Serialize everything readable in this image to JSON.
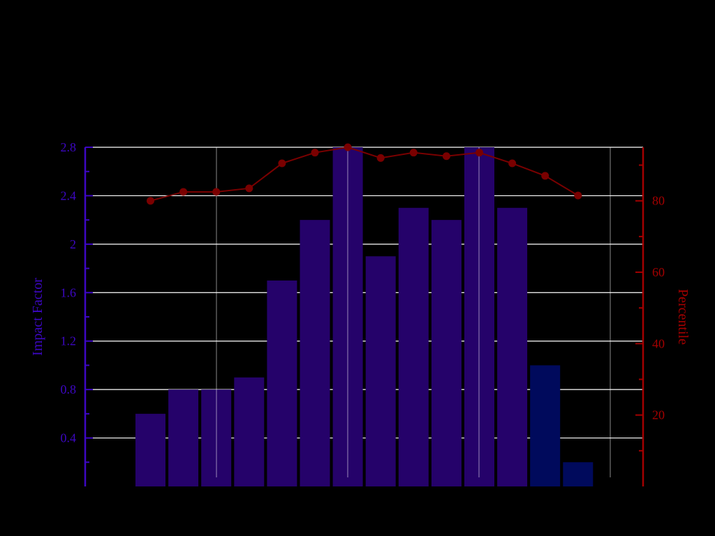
{
  "chart_data": {
    "type": "bar",
    "title": "",
    "xlabel": "",
    "ylabel": "Impact Factor",
    "y2label": "Percentile",
    "ylim": [
      0,
      2.8
    ],
    "y2lim": [
      0,
      95
    ],
    "yticks": [
      "0.4",
      "0.8",
      "1.2",
      "1.6",
      "2",
      "2.4",
      "2.8"
    ],
    "y2ticks": [
      "20",
      "40",
      "60",
      "80"
    ],
    "grid": true,
    "bars": [
      {
        "value": 0.6,
        "color": "#25026a"
      },
      {
        "value": 0.8,
        "color": "#25026a"
      },
      {
        "value": 0.8,
        "color": "#25026a"
      },
      {
        "value": 0.9,
        "color": "#25026a"
      },
      {
        "value": 1.7,
        "color": "#25026a"
      },
      {
        "value": 2.2,
        "color": "#25026a"
      },
      {
        "value": 2.8,
        "color": "#25026a"
      },
      {
        "value": 1.9,
        "color": "#25026a"
      },
      {
        "value": 2.3,
        "color": "#25026a"
      },
      {
        "value": 2.2,
        "color": "#25026a"
      },
      {
        "value": 2.8,
        "color": "#25026a"
      },
      {
        "value": 2.3,
        "color": "#25026a"
      },
      {
        "value": 1.0,
        "color": "#000a5c"
      },
      {
        "value": 0.2,
        "color": "#000a5c"
      }
    ],
    "line": {
      "values": [
        80,
        82.5,
        82.5,
        83.5,
        90.5,
        93.5,
        95,
        92,
        93.5,
        92.5,
        93.5,
        90.5,
        87,
        81.5
      ],
      "color": "#7a0000"
    },
    "colors": {
      "left_axis": "#3d07c4",
      "right_axis": "#a30000",
      "grid": "#ffffff",
      "background": "#000000"
    }
  }
}
